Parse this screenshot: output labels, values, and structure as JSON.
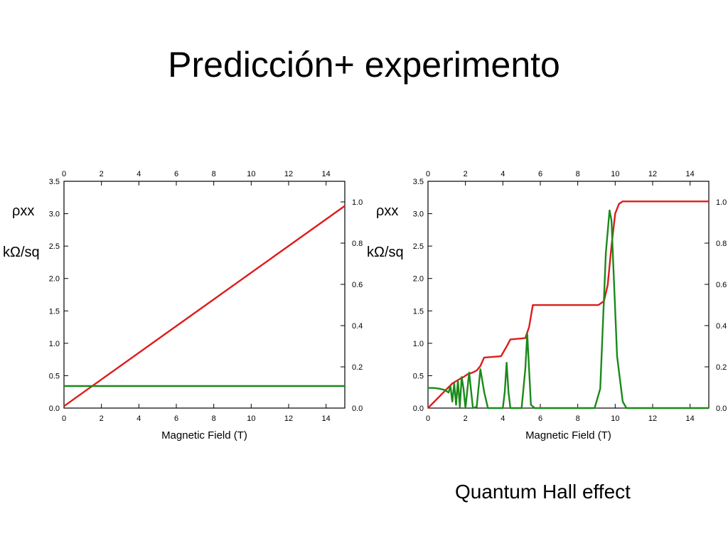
{
  "slide": {
    "title": "Predicción+ experimento",
    "caption": "Quantum Hall effect"
  },
  "colors": {
    "rxx": "#1a8a1a",
    "rxy": "#dd1c1c",
    "axis": "#000000"
  },
  "chart_data": [
    {
      "type": "line",
      "xlabel": "Magnetic Field  (T)",
      "ylabel": "ρxx",
      "ylabel_unit": "kΩ/sq",
      "xlim": [
        0,
        15
      ],
      "ylim": [
        0,
        3.5
      ],
      "y2lim": [
        0,
        1.1
      ],
      "x_ticks": [
        0,
        2,
        4,
        6,
        8,
        10,
        12,
        14
      ],
      "y_ticks": [
        0.0,
        0.5,
        1.0,
        1.5,
        2.0,
        2.5,
        3.0,
        3.5
      ],
      "y2_ticks": [
        0.0,
        0.2,
        0.4,
        0.6,
        0.8,
        1.0
      ],
      "series": [
        {
          "color": "#dd1c1c",
          "axis": "y",
          "x": [
            0,
            15
          ],
          "y": [
            0.03,
            3.12
          ]
        },
        {
          "color": "#1a8a1a",
          "axis": "y",
          "x": [
            0,
            15
          ],
          "y": [
            0.34,
            0.34
          ]
        }
      ]
    },
    {
      "type": "line",
      "xlabel": "Magnetic Field  (T)",
      "ylabel": "ρxx",
      "ylabel_unit": "kΩ/sq",
      "xlim": [
        0,
        15
      ],
      "ylim": [
        0,
        3.5
      ],
      "y2lim": [
        0,
        1.1
      ],
      "x_ticks": [
        0,
        2,
        4,
        6,
        8,
        10,
        12,
        14
      ],
      "y_ticks": [
        0.0,
        0.5,
        1.0,
        1.5,
        2.0,
        2.5,
        3.0,
        3.5
      ],
      "y2_ticks": [
        0.0,
        0.2,
        0.4,
        0.6,
        0.8,
        1.0
      ],
      "series": [
        {
          "color": "#dd1c1c",
          "axis": "y",
          "x": [
            0,
            1.3,
            1.7,
            1.9,
            2.1,
            2.4,
            2.6,
            2.8,
            3.0,
            3.9,
            4.2,
            4.4,
            5.2,
            5.4,
            5.6,
            9.1,
            9.4,
            9.6,
            9.8,
            10.0,
            10.2,
            10.4,
            15
          ],
          "y": [
            0.0,
            0.38,
            0.45,
            0.48,
            0.52,
            0.55,
            0.58,
            0.65,
            0.78,
            0.8,
            0.95,
            1.06,
            1.08,
            1.25,
            1.59,
            1.59,
            1.65,
            1.9,
            2.5,
            3.0,
            3.15,
            3.19,
            3.19
          ]
        },
        {
          "color": "#1a8a1a",
          "axis": "y",
          "x": [
            0,
            0.3,
            0.6,
            0.9,
            1.1,
            1.2,
            1.3,
            1.4,
            1.5,
            1.6,
            1.7,
            1.8,
            1.9,
            2.0,
            2.2,
            2.4,
            2.6,
            2.8,
            3.0,
            3.2,
            3.4,
            4.0,
            4.1,
            4.2,
            4.3,
            4.4,
            5.0,
            5.2,
            5.3,
            5.4,
            5.5,
            5.7,
            8.9,
            9.2,
            9.5,
            9.7,
            9.8,
            9.9,
            10.1,
            10.4,
            10.6,
            15
          ],
          "y": [
            0.31,
            0.31,
            0.3,
            0.28,
            0.24,
            0.34,
            0.1,
            0.38,
            0.05,
            0.42,
            0.02,
            0.48,
            0.3,
            0.0,
            0.55,
            0.0,
            0.02,
            0.6,
            0.25,
            0.0,
            0.0,
            0.0,
            0.25,
            0.7,
            0.25,
            0.0,
            0.0,
            0.6,
            1.15,
            0.6,
            0.05,
            0.0,
            0.0,
            0.3,
            2.4,
            3.05,
            2.9,
            2.2,
            0.8,
            0.1,
            0.0,
            0.0
          ]
        }
      ]
    }
  ]
}
